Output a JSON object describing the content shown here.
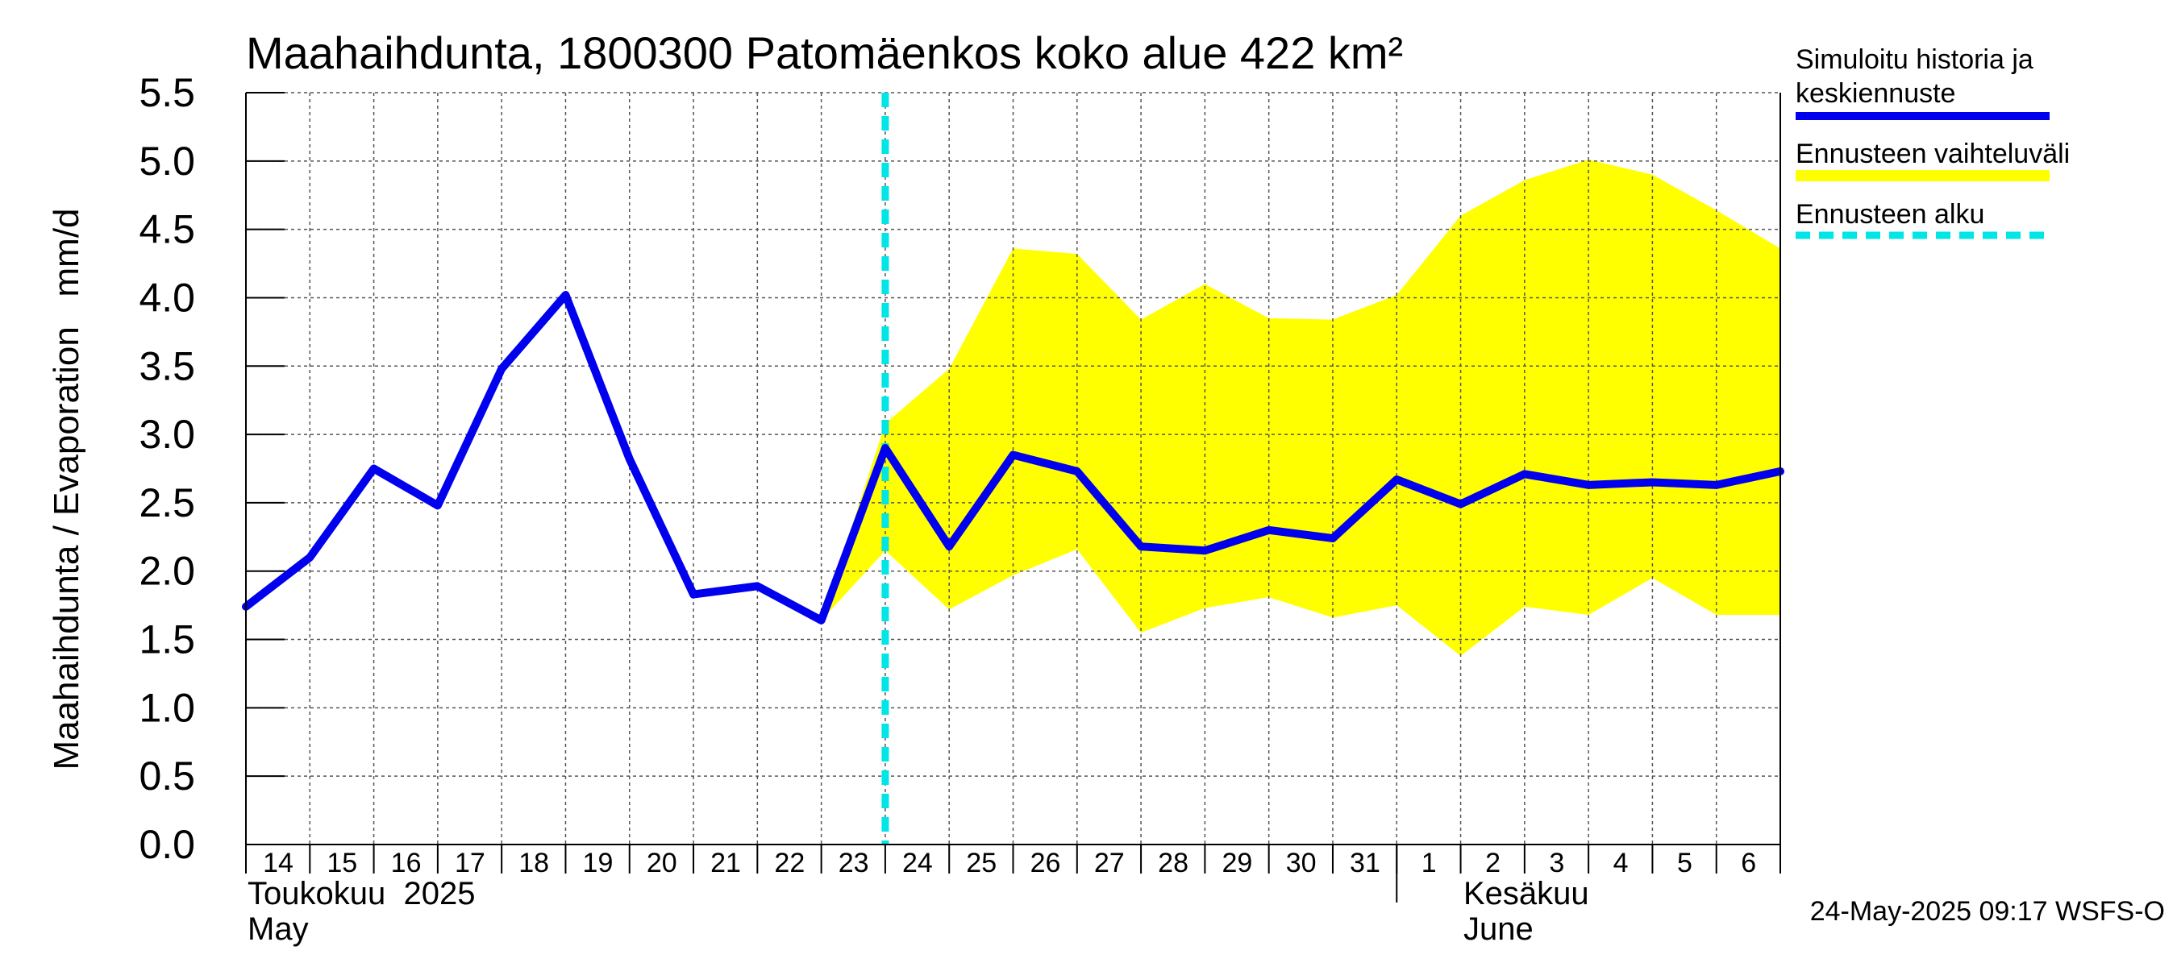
{
  "chart_data": {
    "type": "line",
    "title": "Maahaihdunta, 1800300 Patomäenkos koko alue 422 km²",
    "ylabel": "Maahaihdunta / Evaporation   mm/d",
    "ylim": [
      0,
      5.5
    ],
    "yticks": [
      "0.0",
      "0.5",
      "1.0",
      "1.5",
      "2.0",
      "2.5",
      "3.0",
      "3.5",
      "4.0",
      "4.5",
      "5.0",
      "5.5"
    ],
    "x_ticks": [
      "14",
      "15",
      "16",
      "17",
      "18",
      "19",
      "20",
      "21",
      "22",
      "23",
      "24",
      "25",
      "26",
      "27",
      "28",
      "29",
      "30",
      "31",
      "1",
      "2",
      "3",
      "4",
      "5",
      "6"
    ],
    "month_labels": {
      "may_fi": "Toukokuu  2025",
      "may_en": "May",
      "june_fi": "Kesäkuu",
      "june_en": "June"
    },
    "x_range": [
      0,
      24
    ],
    "grid": true,
    "legend_position": "right",
    "legend": {
      "history": "Simuloitu historia ja keskiennuste",
      "range": "Ennusteen vaihteluväli",
      "start": "Ennusteen alku"
    },
    "colors": {
      "history": "#0000ee",
      "range": "#ffff00",
      "start": "#00e5e5"
    },
    "forecast_start_x": 10,
    "series": [
      {
        "name": "Simuloitu historia ja keskiennuste",
        "x": [
          0,
          1,
          2,
          3,
          4,
          5,
          6,
          7,
          8,
          9,
          10,
          11,
          12,
          13,
          14,
          15,
          16,
          17,
          18,
          19,
          20,
          21,
          22,
          23,
          24
        ],
        "values": [
          1.74,
          2.1,
          2.75,
          2.48,
          3.48,
          4.02,
          2.82,
          1.83,
          1.89,
          1.64,
          2.9,
          2.18,
          2.85,
          2.73,
          2.18,
          2.15,
          2.3,
          2.24,
          2.67,
          2.49,
          2.71,
          2.63,
          2.65,
          2.63,
          2.73
        ]
      }
    ],
    "band": {
      "name": "Ennusteen vaihteluväli",
      "x": [
        9,
        10,
        11,
        12,
        13,
        14,
        15,
        16,
        17,
        18,
        19,
        20,
        21,
        22,
        23,
        24
      ],
      "upper": [
        1.64,
        3.08,
        3.48,
        4.36,
        4.32,
        3.84,
        4.1,
        3.85,
        3.84,
        4.02,
        4.6,
        4.86,
        5.01,
        4.9,
        4.64,
        4.36
      ],
      "lower": [
        1.64,
        2.15,
        1.72,
        1.97,
        2.16,
        1.55,
        1.73,
        1.81,
        1.66,
        1.75,
        1.38,
        1.74,
        1.68,
        1.95,
        1.68,
        1.68
      ]
    },
    "footer": "24-May-2025 09:17 WSFS-O"
  }
}
